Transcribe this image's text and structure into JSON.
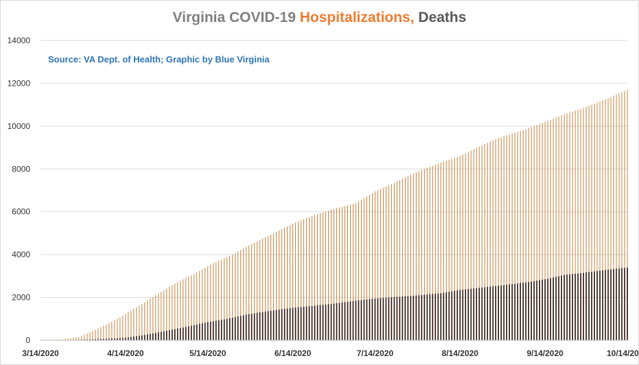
{
  "title": {
    "part1": "Virginia COVID-19 ",
    "part2": "Hospitalizations,",
    "part3": " Deaths",
    "color1": "#7f7f7f",
    "color2": "#ed7d31",
    "color3": "#595959"
  },
  "source_note": "Source: VA Dept. of Health; Graphic by Blue Virginia",
  "source_color": "#2e75b6",
  "chart_data": {
    "type": "bar",
    "x_start": "3/14/2020",
    "x_end": "10/14/2020",
    "x_tick_labels": [
      "3/14/2020",
      "4/14/2020",
      "5/14/2020",
      "6/14/2020",
      "7/14/2020",
      "8/14/2020",
      "9/14/2020",
      "10/14/2020"
    ],
    "ylim": [
      0,
      14000
    ],
    "y_ticks": [
      0,
      2000,
      4000,
      6000,
      8000,
      10000,
      12000,
      14000
    ],
    "grid": true,
    "legend": "none",
    "series": [
      {
        "color": "#c5803a",
        "anchors": [
          [
            "3/14/2020",
            10
          ],
          [
            "3/21/2020",
            40
          ],
          [
            "3/28/2020",
            150
          ],
          [
            "4/4/2020",
            550
          ],
          [
            "4/11/2020",
            1000
          ],
          [
            "4/18/2020",
            1550
          ],
          [
            "4/25/2020",
            2100
          ],
          [
            "5/2/2020",
            2650
          ],
          [
            "5/9/2020",
            3100
          ],
          [
            "5/16/2020",
            3600
          ],
          [
            "5/23/2020",
            4000
          ],
          [
            "5/30/2020",
            4500
          ],
          [
            "6/7/2020",
            5000
          ],
          [
            "6/14/2020",
            5450
          ],
          [
            "6/21/2020",
            5800
          ],
          [
            "6/28/2020",
            6100
          ],
          [
            "7/7/2020",
            6400
          ],
          [
            "7/14/2020",
            6950
          ],
          [
            "7/21/2020",
            7350
          ],
          [
            "7/28/2020",
            7800
          ],
          [
            "8/7/2020",
            8300
          ],
          [
            "8/14/2020",
            8600
          ],
          [
            "8/21/2020",
            9050
          ],
          [
            "8/28/2020",
            9450
          ],
          [
            "9/7/2020",
            9850
          ],
          [
            "9/14/2020",
            10200
          ],
          [
            "9/21/2020",
            10550
          ],
          [
            "9/28/2020",
            10850
          ],
          [
            "10/7/2020",
            11300
          ],
          [
            "10/14/2020",
            11700
          ]
        ]
      },
      {
        "color": "#2a1208",
        "anchors": [
          [
            "3/14/2020",
            5
          ],
          [
            "3/28/2020",
            20
          ],
          [
            "4/7/2020",
            70
          ],
          [
            "4/14/2020",
            120
          ],
          [
            "4/21/2020",
            250
          ],
          [
            "4/28/2020",
            420
          ],
          [
            "5/7/2020",
            650
          ],
          [
            "5/14/2020",
            850
          ],
          [
            "5/21/2020",
            1000
          ],
          [
            "5/28/2020",
            1200
          ],
          [
            "6/7/2020",
            1400
          ],
          [
            "6/14/2020",
            1520
          ],
          [
            "6/21/2020",
            1600
          ],
          [
            "6/28/2020",
            1700
          ],
          [
            "7/7/2020",
            1850
          ],
          [
            "7/14/2020",
            1950
          ],
          [
            "7/21/2020",
            2020
          ],
          [
            "7/28/2020",
            2080
          ],
          [
            "8/7/2020",
            2200
          ],
          [
            "8/14/2020",
            2350
          ],
          [
            "8/21/2020",
            2450
          ],
          [
            "8/28/2020",
            2550
          ],
          [
            "9/7/2020",
            2700
          ],
          [
            "9/14/2020",
            2850
          ],
          [
            "9/21/2020",
            3050
          ],
          [
            "9/28/2020",
            3150
          ],
          [
            "10/7/2020",
            3300
          ],
          [
            "10/14/2020",
            3400
          ]
        ]
      }
    ]
  }
}
